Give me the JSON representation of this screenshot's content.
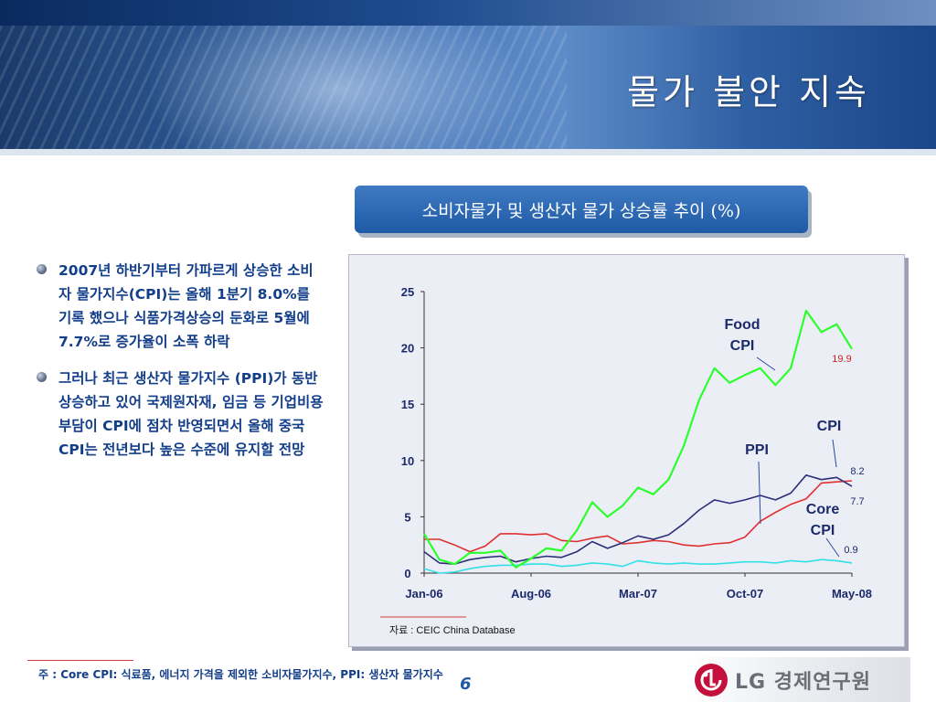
{
  "header": {
    "title": "물가 불안 지속"
  },
  "chart_heading": "소비자물가 및 생산자 물가 상승률 추이 (%)",
  "bullets": [
    {
      "text": "2007년 하반기부터 가파르게 상승한 소비자 물가지수(CPI)는 올해 1분기 8.0%를 기록 했으나 식품가격상승의 둔화로 5월에 7.7%로 증가율이 소폭 하락"
    },
    {
      "text": "그러나 최근 생산자 물가지수 (PPI)가 동반상승하고 있어 국제원자재, 임금 등 기업비용부담이 CPI에 점차 반영되면서 올해 중국 CPI는 전년보다 높은 수준에 유지할 전망"
    }
  ],
  "chart_data": {
    "type": "line",
    "x": [
      "Jan-06",
      "Feb-06",
      "Mar-06",
      "Apr-06",
      "May-06",
      "Jun-06",
      "Jul-06",
      "Aug-06",
      "Sep-06",
      "Oct-06",
      "Nov-06",
      "Dec-06",
      "Jan-07",
      "Feb-07",
      "Mar-07",
      "Apr-07",
      "May-07",
      "Jun-07",
      "Jul-07",
      "Aug-07",
      "Sep-07",
      "Oct-07",
      "Nov-07",
      "Dec-07",
      "Jan-08",
      "Feb-08",
      "Mar-08",
      "Apr-08",
      "May-08"
    ],
    "xticks": [
      "Jan-06",
      "Aug-06",
      "Mar-07",
      "Oct-07",
      "May-08"
    ],
    "yticks": [
      0,
      5,
      10,
      15,
      20,
      25
    ],
    "ylim": [
      0,
      25
    ],
    "series": [
      {
        "name": "Food CPI",
        "color": "#2bff2b",
        "values": [
          3.5,
          1.2,
          0.8,
          1.8,
          1.8,
          2.0,
          0.5,
          1.3,
          2.2,
          2.0,
          3.8,
          6.3,
          5.0,
          6.0,
          7.6,
          7.0,
          8.3,
          11.3,
          15.4,
          18.2,
          16.9,
          17.6,
          18.2,
          16.7,
          18.2,
          23.3,
          21.4,
          22.1,
          19.9
        ]
      },
      {
        "name": "CPI",
        "color": "#2a2f7a",
        "values": [
          1.9,
          0.9,
          0.8,
          1.2,
          1.4,
          1.5,
          1.0,
          1.3,
          1.5,
          1.4,
          1.9,
          2.8,
          2.2,
          2.7,
          3.3,
          3.0,
          3.4,
          4.4,
          5.6,
          6.5,
          6.2,
          6.5,
          6.9,
          6.5,
          7.1,
          8.7,
          8.3,
          8.5,
          7.7
        ]
      },
      {
        "name": "PPI",
        "color": "#e03030",
        "values": [
          3.0,
          3.0,
          2.5,
          1.9,
          2.4,
          3.5,
          3.5,
          3.4,
          3.5,
          2.9,
          2.8,
          3.1,
          3.3,
          2.6,
          2.7,
          2.9,
          2.8,
          2.5,
          2.4,
          2.6,
          2.7,
          3.2,
          4.6,
          5.4,
          6.1,
          6.6,
          8.0,
          8.1,
          8.2
        ]
      },
      {
        "name": "Core CPI",
        "color": "#33e0e8",
        "values": [
          0.4,
          0.0,
          0.1,
          0.4,
          0.6,
          0.7,
          0.7,
          0.8,
          0.8,
          0.6,
          0.7,
          0.9,
          0.8,
          0.6,
          1.1,
          0.9,
          0.8,
          0.9,
          0.8,
          0.8,
          0.9,
          1.0,
          1.0,
          0.9,
          1.1,
          1.0,
          1.2,
          1.1,
          0.9
        ]
      }
    ],
    "labels": {
      "food_line1": "Food",
      "food_line2": "CPI",
      "cpi": "CPI",
      "ppi": "PPI",
      "core_line1": "Core",
      "core_line2": "CPI"
    },
    "end_values": {
      "food": "19.9",
      "ppi": "8.2",
      "cpi": "7.7",
      "core": "0.9"
    },
    "source": "자료 : CEIC China Database",
    "grid": false
  },
  "footnote": "주 : Core CPI: 식료품, 에너지 가격을 제외한 소비자물가지수, PPI: 생산자 물가지수",
  "page_number": "6",
  "logo": {
    "text": "LG 경제연구원"
  }
}
